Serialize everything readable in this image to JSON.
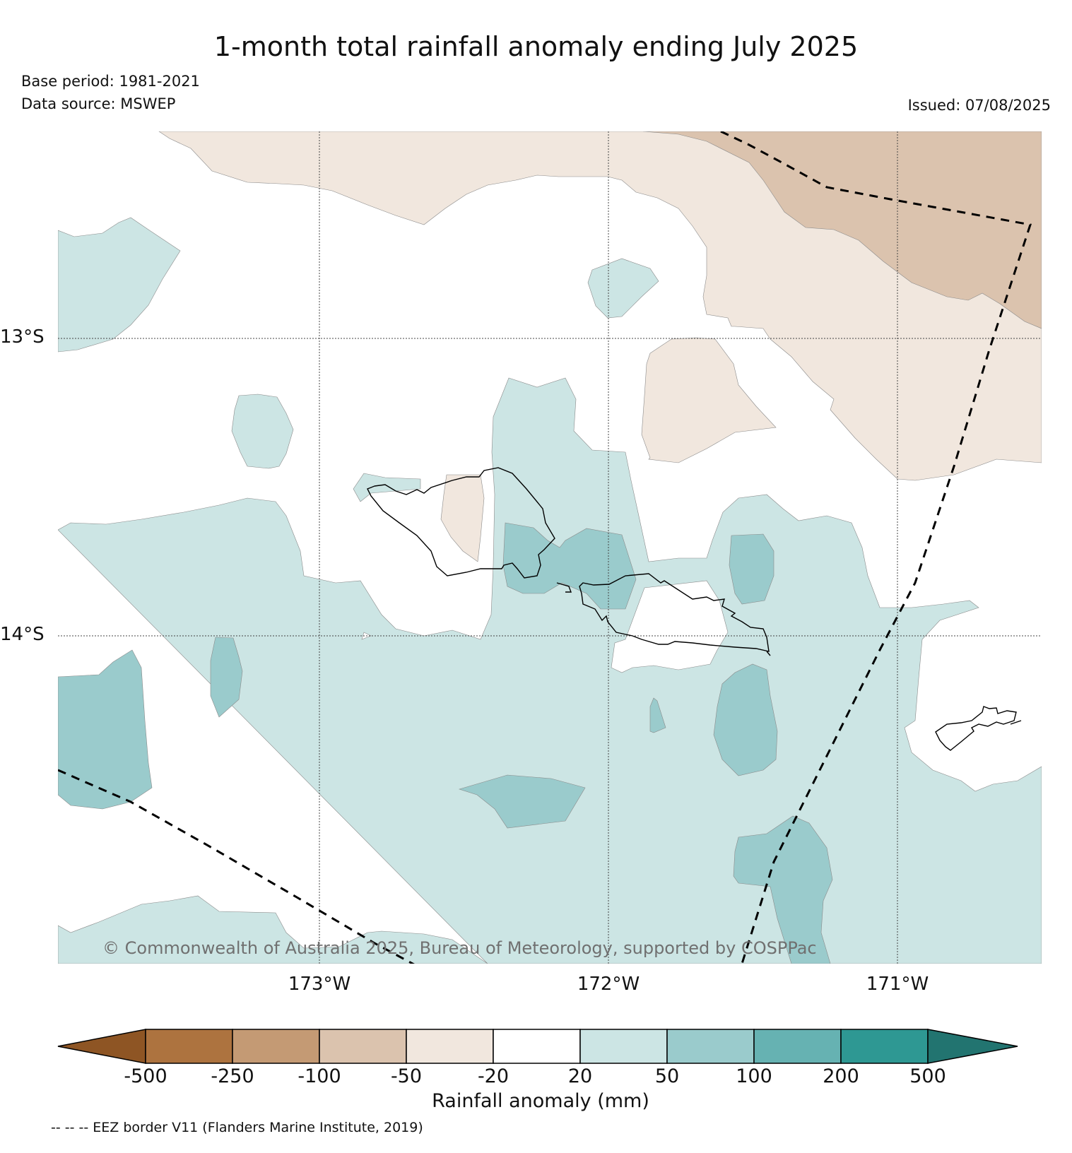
{
  "header": {
    "title": "1-month total rainfall anomaly ending July 2025",
    "base_period": "Base period: 1981-2021",
    "data_source": "Data source: MSWEP",
    "issued": "Issued: 07/08/2025"
  },
  "map": {
    "lat_labels": [
      "13°S",
      "14°S"
    ],
    "lon_labels": [
      "173°W",
      "172°W",
      "171°W"
    ],
    "copyright": "© Commonwealth of Australia 2025, Bureau of Meteorology, supported by COSPPac",
    "extent": {
      "lon_min": -173.9,
      "lon_max": -170.5,
      "lat_min": -15.1,
      "lat_max": -12.3
    }
  },
  "colorbar": {
    "label": "Rainfall anomaly (mm)",
    "ticks": [
      "-500",
      "-250",
      "-100",
      "-50",
      "-20",
      "20",
      "50",
      "100",
      "200",
      "500"
    ],
    "colors": [
      "#8e5524",
      "#ad733f",
      "#c49a74",
      "#dbc3ae",
      "#f1e7de",
      "#ffffff",
      "#cce5e4",
      "#9acbcc",
      "#66b2b2",
      "#2e9893",
      "#227470"
    ]
  },
  "legend_note": "-- -- -- EEZ border V11 (Flanders Marine Institute, 2019)"
}
